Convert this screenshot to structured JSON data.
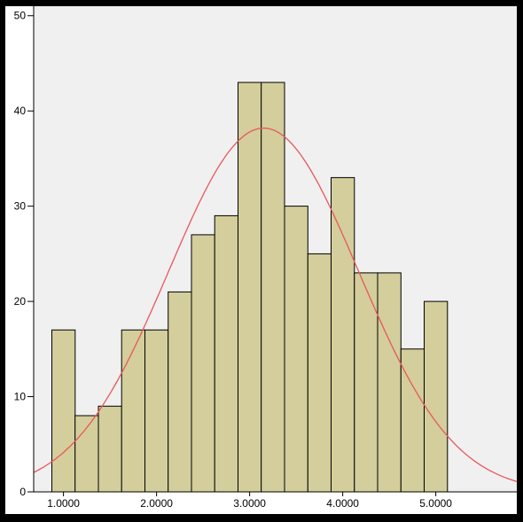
{
  "colors": {
    "background": "#ffffff",
    "plot_area": "#f0f0f0",
    "bar_fill": "#d3ce9b",
    "bar_stroke": "#000000",
    "curve": "#e8585c",
    "frame": "#000000"
  },
  "chart_data": {
    "type": "bar",
    "title": "",
    "xlabel": "",
    "ylabel": "",
    "bin_width": 0.25,
    "bin_centers": [
      1.0,
      1.25,
      1.5,
      1.75,
      2.0,
      2.25,
      2.5,
      2.75,
      3.0,
      3.25,
      3.5,
      3.75,
      4.0,
      4.25,
      4.5,
      4.75,
      5.0
    ],
    "values": [
      17,
      8,
      9,
      17,
      17,
      21,
      27,
      29,
      43,
      43,
      30,
      25,
      33,
      23,
      23,
      15,
      20
    ],
    "xlim": [
      0.68,
      5.87
    ],
    "ylim": [
      0,
      51
    ],
    "x_ticks": [
      {
        "value": 1.0,
        "label": "1.0000"
      },
      {
        "value": 2.0,
        "label": "2.0000"
      },
      {
        "value": 3.0,
        "label": "3.0000"
      },
      {
        "value": 4.0,
        "label": "4.0000"
      },
      {
        "value": 5.0,
        "label": "5.0000"
      }
    ],
    "y_ticks": [
      {
        "value": 0,
        "label": "0"
      },
      {
        "value": 10,
        "label": "10"
      },
      {
        "value": 20,
        "label": "20"
      },
      {
        "value": 30,
        "label": "30"
      },
      {
        "value": 40,
        "label": "40"
      },
      {
        "value": 50,
        "label": "50"
      }
    ],
    "normal_curve": {
      "mean": 3.15,
      "peak": 38.2,
      "sd": 1.02
    },
    "grid": false,
    "legend": "none"
  }
}
